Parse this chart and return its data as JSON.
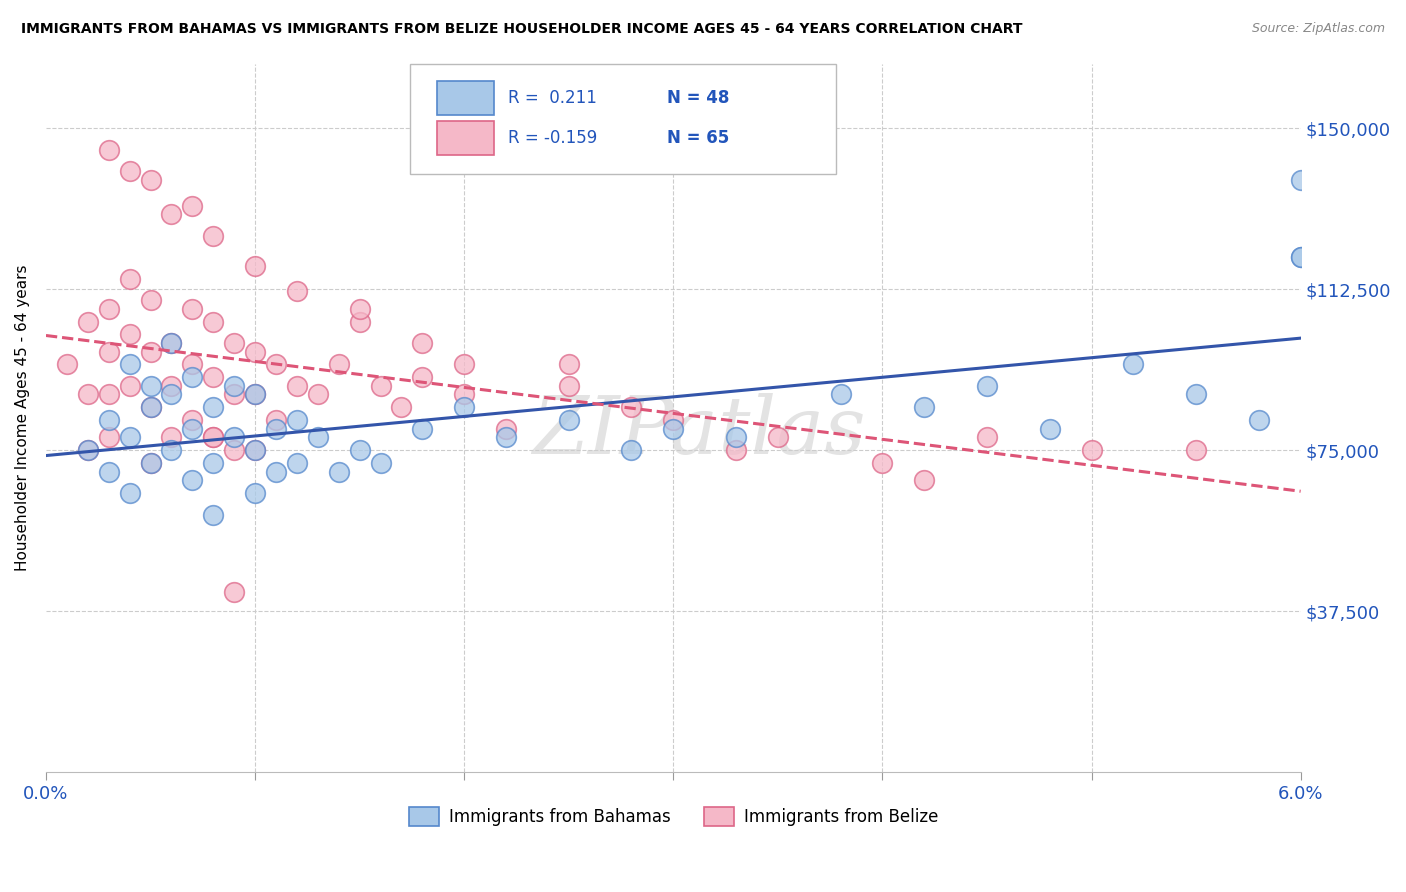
{
  "title": "IMMIGRANTS FROM BAHAMAS VS IMMIGRANTS FROM BELIZE HOUSEHOLDER INCOME AGES 45 - 64 YEARS CORRELATION CHART",
  "source": "Source: ZipAtlas.com",
  "ylabel": "Householder Income Ages 45 - 64 years",
  "ytick_labels": [
    "$37,500",
    "$75,000",
    "$112,500",
    "$150,000"
  ],
  "ytick_values": [
    37500,
    75000,
    112500,
    150000
  ],
  "ymin": 0,
  "ymax": 165000,
  "xmin": 0.0,
  "xmax": 0.06,
  "color_bahamas_fill": "#a8c8e8",
  "color_belize_fill": "#f5b8c8",
  "color_bahamas_edge": "#5588cc",
  "color_belize_edge": "#dd6688",
  "color_line_bahamas": "#3355aa",
  "color_line_belize": "#dd5577",
  "color_blue_text": "#2255bb",
  "watermark": "ZIPatlas",
  "bahamas_x": [
    0.002,
    0.003,
    0.003,
    0.004,
    0.004,
    0.004,
    0.005,
    0.005,
    0.005,
    0.006,
    0.006,
    0.006,
    0.007,
    0.007,
    0.007,
    0.008,
    0.008,
    0.008,
    0.009,
    0.009,
    0.01,
    0.01,
    0.01,
    0.011,
    0.011,
    0.012,
    0.012,
    0.013,
    0.014,
    0.015,
    0.016,
    0.018,
    0.02,
    0.022,
    0.025,
    0.028,
    0.03,
    0.033,
    0.038,
    0.042,
    0.045,
    0.048,
    0.052,
    0.055,
    0.058,
    0.06,
    0.06,
    0.06
  ],
  "bahamas_y": [
    75000,
    82000,
    70000,
    95000,
    78000,
    65000,
    90000,
    85000,
    72000,
    100000,
    88000,
    75000,
    92000,
    80000,
    68000,
    85000,
    72000,
    60000,
    90000,
    78000,
    88000,
    75000,
    65000,
    80000,
    70000,
    82000,
    72000,
    78000,
    70000,
    75000,
    72000,
    80000,
    85000,
    78000,
    82000,
    75000,
    80000,
    78000,
    88000,
    85000,
    90000,
    80000,
    95000,
    88000,
    82000,
    138000,
    120000,
    120000
  ],
  "belize_x": [
    0.001,
    0.002,
    0.002,
    0.002,
    0.003,
    0.003,
    0.003,
    0.003,
    0.004,
    0.004,
    0.004,
    0.005,
    0.005,
    0.005,
    0.005,
    0.006,
    0.006,
    0.006,
    0.007,
    0.007,
    0.007,
    0.008,
    0.008,
    0.008,
    0.009,
    0.009,
    0.009,
    0.01,
    0.01,
    0.01,
    0.011,
    0.011,
    0.012,
    0.013,
    0.014,
    0.015,
    0.016,
    0.017,
    0.018,
    0.02,
    0.022,
    0.025,
    0.028,
    0.03,
    0.033,
    0.035,
    0.04,
    0.042,
    0.004,
    0.006,
    0.008,
    0.01,
    0.012,
    0.015,
    0.018,
    0.02,
    0.025,
    0.003,
    0.005,
    0.007,
    0.008,
    0.009,
    0.045,
    0.05,
    0.055
  ],
  "belize_y": [
    95000,
    105000,
    88000,
    75000,
    108000,
    98000,
    88000,
    78000,
    115000,
    102000,
    90000,
    110000,
    98000,
    85000,
    72000,
    100000,
    90000,
    78000,
    108000,
    95000,
    82000,
    105000,
    92000,
    78000,
    100000,
    88000,
    75000,
    98000,
    88000,
    75000,
    95000,
    82000,
    90000,
    88000,
    95000,
    105000,
    90000,
    85000,
    92000,
    88000,
    80000,
    95000,
    85000,
    82000,
    75000,
    78000,
    72000,
    68000,
    140000,
    130000,
    125000,
    118000,
    112000,
    108000,
    100000,
    95000,
    90000,
    145000,
    138000,
    132000,
    78000,
    42000,
    78000,
    75000,
    75000
  ]
}
